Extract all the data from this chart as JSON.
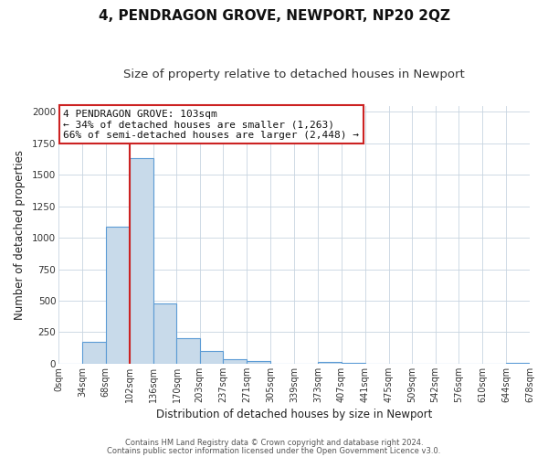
{
  "title": "4, PENDRAGON GROVE, NEWPORT, NP20 2QZ",
  "subtitle": "Size of property relative to detached houses in Newport",
  "xlabel": "Distribution of detached houses by size in Newport",
  "ylabel": "Number of detached properties",
  "footer_line1": "Contains HM Land Registry data © Crown copyright and database right 2024.",
  "footer_line2": "Contains public sector information licensed under the Open Government Licence v3.0.",
  "bin_edges": [
    0,
    34,
    68,
    102,
    136,
    170,
    203,
    237,
    271,
    305,
    339,
    373,
    407,
    441,
    475,
    509,
    542,
    576,
    610,
    644,
    678
  ],
  "bin_counts": [
    0,
    170,
    1090,
    1630,
    480,
    200,
    100,
    35,
    20,
    0,
    0,
    15,
    5,
    0,
    0,
    0,
    0,
    0,
    0,
    10
  ],
  "bar_color": "#c8daea",
  "bar_edge_color": "#5b9bd5",
  "red_line_x": 103,
  "annotation_line1": "4 PENDRAGON GROVE: 103sqm",
  "annotation_line2": "← 34% of detached houses are smaller (1,263)",
  "annotation_line3": "66% of semi-detached houses are larger (2,448) →",
  "annotation_box_color": "white",
  "annotation_box_edge": "#cc2222",
  "ylim": [
    0,
    2050
  ],
  "xlim": [
    0,
    678
  ],
  "tick_labels": [
    "0sqm",
    "34sqm",
    "68sqm",
    "102sqm",
    "136sqm",
    "170sqm",
    "203sqm",
    "237sqm",
    "271sqm",
    "305sqm",
    "339sqm",
    "373sqm",
    "407sqm",
    "441sqm",
    "475sqm",
    "509sqm",
    "542sqm",
    "576sqm",
    "610sqm",
    "644sqm",
    "678sqm"
  ],
  "tick_positions": [
    0,
    34,
    68,
    102,
    136,
    170,
    203,
    237,
    271,
    305,
    339,
    373,
    407,
    441,
    475,
    509,
    542,
    576,
    610,
    644,
    678
  ],
  "background_color": "#ffffff",
  "grid_color": "#c8d4e0",
  "title_fontsize": 11,
  "subtitle_fontsize": 9.5,
  "axis_label_fontsize": 8.5,
  "tick_fontsize": 7,
  "annotation_fontsize": 8,
  "footer_fontsize": 6
}
